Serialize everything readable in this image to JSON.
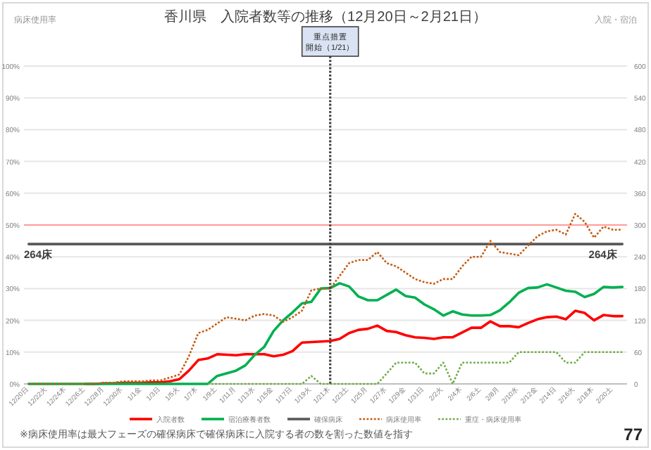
{
  "chart_data": {
    "type": "line",
    "title": "香川県　入院者数等の推移（12月20日～2月21日）",
    "categories": [
      "12/20日",
      null,
      "12/22火",
      null,
      "12/24木",
      null,
      "12/26土",
      null,
      "12/28月",
      null,
      "12/30水",
      null,
      "1/1金",
      null,
      "1/3日",
      null,
      "1/5火",
      null,
      "1/7木",
      null,
      "1/9土",
      null,
      "1/11月",
      null,
      "1/13水",
      null,
      "1/15金",
      null,
      "1/17日",
      null,
      "1/19火",
      null,
      "1/21木",
      null,
      "1/23土",
      null,
      "1/25月",
      null,
      "1/27水",
      null,
      "1/29金",
      null,
      "1/31日",
      null,
      "2/2火",
      null,
      "2/4木",
      null,
      "2/6土",
      null,
      "2/8月",
      null,
      "2/10水",
      null,
      "2/12金",
      null,
      "2/14日",
      null,
      "2/16火",
      null,
      "2/18木",
      null,
      "2/20土",
      null
    ],
    "series": [
      {
        "name": "入院者数",
        "color": "#ff0000",
        "axis": "y2",
        "line_style": "solid",
        "values": [
          null,
          null,
          null,
          null,
          null,
          null,
          0,
          0,
          1,
          1,
          2,
          2,
          2,
          3,
          3,
          5,
          9,
          25,
          45,
          48,
          56,
          55,
          54,
          56,
          56,
          56,
          52,
          55,
          62,
          78,
          79,
          80,
          81,
          85,
          96,
          102,
          104,
          110,
          100,
          98,
          92,
          88,
          87,
          85,
          88,
          88,
          97,
          106,
          106,
          118,
          109,
          109,
          107,
          115,
          122,
          126,
          127,
          122,
          138,
          134,
          120,
          130,
          128,
          128
        ]
      },
      {
        "name": "宿泊療養者数",
        "color": "#00b050",
        "axis": "y2",
        "line_style": "solid",
        "values": [
          0,
          0,
          0,
          0,
          0,
          0,
          0,
          0,
          0,
          0,
          0,
          0,
          0,
          0,
          0,
          0,
          0,
          0,
          0,
          0,
          15,
          20,
          25,
          35,
          55,
          70,
          100,
          120,
          135,
          152,
          155,
          180,
          181,
          190,
          184,
          165,
          158,
          158,
          168,
          178,
          166,
          163,
          150,
          141,
          129,
          137,
          131,
          129,
          129,
          130,
          139,
          154,
          172,
          181,
          182,
          188,
          182,
          176,
          174,
          164,
          170,
          183,
          182,
          183
        ]
      },
      {
        "name": "確保病床",
        "color": "#595959",
        "axis": "y2",
        "line_style": "solid",
        "values": [
          264,
          264,
          264,
          264,
          264,
          264,
          264,
          264,
          264,
          264,
          264,
          264,
          264,
          264,
          264,
          264,
          264,
          264,
          264,
          264,
          264,
          264,
          264,
          264,
          264,
          264,
          264,
          264,
          264,
          264,
          264,
          264,
          264,
          264,
          264,
          264,
          264,
          264,
          264,
          264,
          264,
          264,
          264,
          264,
          264,
          264,
          264,
          264,
          264,
          264,
          264,
          264,
          264,
          264,
          264,
          264,
          264,
          264,
          264,
          264,
          264,
          264,
          264,
          264
        ]
      },
      {
        "name": "病床使用率",
        "color": "#c55a11",
        "line_style": "dotted",
        "values": [
          0,
          0,
          0,
          0,
          0,
          0,
          0,
          0,
          0.4,
          0.4,
          0.8,
          0.8,
          0.8,
          1.1,
          1.1,
          2,
          3,
          8.7,
          16,
          17,
          19,
          21,
          20.5,
          20,
          21.5,
          22,
          21.5,
          19.5,
          21,
          23,
          29.5,
          30,
          30,
          34,
          38,
          39,
          39,
          41.5,
          38,
          37,
          35,
          33,
          32,
          31.5,
          33,
          33,
          37,
          40,
          40,
          45,
          41.5,
          41,
          40.5,
          43.5,
          46.5,
          48,
          48.5,
          47,
          53.5,
          51,
          46,
          49.5,
          48.5,
          48.5
        ]
      },
      {
        "name": "重症・病床使用率",
        "color": "#70ad47",
        "line_style": "dotted",
        "values": [
          null,
          null,
          null,
          null,
          null,
          null,
          null,
          null,
          null,
          null,
          null,
          null,
          null,
          null,
          null,
          null,
          null,
          null,
          null,
          0,
          0,
          0,
          0,
          0,
          0,
          0,
          0,
          0,
          0,
          0,
          2.5,
          0,
          0,
          0,
          0,
          0,
          0,
          0,
          3.3,
          6.7,
          6.7,
          6.7,
          3.3,
          3.3,
          6.7,
          0,
          6.7,
          6.7,
          6.7,
          6.7,
          6.7,
          6.7,
          10,
          10,
          10,
          10,
          10,
          6.7,
          6.7,
          10,
          10,
          10,
          10,
          10
        ]
      }
    ],
    "ylim": [
      0,
      100
    ],
    "yticks": [
      {
        "value": 0,
        "label": "0%"
      },
      {
        "value": 10,
        "label": "10%"
      },
      {
        "value": 20,
        "label": "20%"
      },
      {
        "value": 30,
        "label": "30%"
      },
      {
        "value": 40,
        "label": "40%"
      },
      {
        "value": 50,
        "label": "50%"
      },
      {
        "value": 60,
        "label": "60%"
      },
      {
        "value": 70,
        "label": "70%"
      },
      {
        "value": 80,
        "label": "80%"
      },
      {
        "value": 90,
        "label": "90%"
      },
      {
        "value": 100,
        "label": "100%"
      }
    ],
    "y2lim": [
      0,
      600
    ],
    "y2ticks": [
      0,
      60,
      120,
      180,
      240,
      300,
      360,
      420,
      480,
      540,
      600
    ],
    "grid": "y",
    "legend": "bottom",
    "ref_lines": [
      {
        "axis": "y",
        "value": 50,
        "color": "#ff9999",
        "line_style": "solid"
      },
      {
        "axis": "x",
        "value": "1/21木",
        "label": "重点措置開始（1/21）",
        "color": "#404040",
        "line_style": "dotted"
      }
    ],
    "annotations": [
      {
        "text": "264床",
        "x": "12/20日",
        "y": 44
      },
      {
        "text": "264床",
        "x": "2/20土",
        "y": 44
      },
      "病床使用率",
      "入院・宿泊",
      "※病床使用率は最大フェーズの確保病床で確保病床に入院する者の数を割った数値を指す",
      "77"
    ]
  }
}
